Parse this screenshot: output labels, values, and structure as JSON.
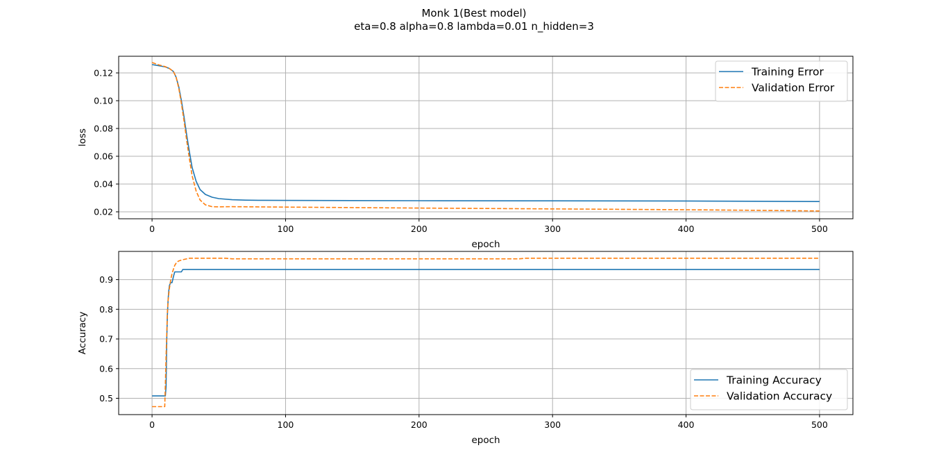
{
  "figure": {
    "title": "Monk 1(Best model)",
    "subtitle": "eta=0.8 alpha=0.8 lambda=0.01 n_hidden=3"
  },
  "colors": {
    "training": "#1f77b4",
    "validation": "#ff7f0e",
    "grid": "#b0b0b0"
  },
  "chart_data": [
    {
      "type": "line",
      "xlabel": "epoch",
      "ylabel": "loss",
      "xlim": [
        -25,
        525
      ],
      "ylim": [
        0.015,
        0.132
      ],
      "xticks": [
        0,
        100,
        200,
        300,
        400,
        500
      ],
      "yticks": [
        0.02,
        0.04,
        0.06,
        0.08,
        0.1,
        0.12
      ],
      "ytick_labels": [
        "0.02",
        "0.04",
        "0.06",
        "0.08",
        "0.10",
        "0.12"
      ],
      "grid": true,
      "legend_position": "top-right",
      "series": [
        {
          "name": "Training Error",
          "style": "solid",
          "x": [
            0,
            5,
            10,
            13,
            16,
            18,
            20,
            22,
            24,
            26,
            28,
            30,
            33,
            36,
            40,
            45,
            50,
            60,
            70,
            80,
            100,
            150,
            200,
            300,
            400,
            450,
            500
          ],
          "y": [
            0.126,
            0.1252,
            0.1243,
            0.1232,
            0.121,
            0.117,
            0.11,
            0.1,
            0.088,
            0.075,
            0.063,
            0.052,
            0.042,
            0.036,
            0.0325,
            0.0305,
            0.0295,
            0.0287,
            0.0284,
            0.0283,
            0.0282,
            0.0281,
            0.028,
            0.0279,
            0.0278,
            0.0276,
            0.0274
          ]
        },
        {
          "name": "Validation Error",
          "style": "dashed",
          "x": [
            0,
            5,
            10,
            13,
            16,
            18,
            20,
            22,
            24,
            26,
            28,
            30,
            33,
            36,
            40,
            45,
            50,
            60,
            100,
            200,
            300,
            400,
            450,
            500
          ],
          "y": [
            0.1275,
            0.1258,
            0.1245,
            0.1232,
            0.121,
            0.117,
            0.109,
            0.098,
            0.085,
            0.071,
            0.058,
            0.046,
            0.035,
            0.0285,
            0.025,
            0.0237,
            0.0236,
            0.0237,
            0.0234,
            0.0227,
            0.0221,
            0.0215,
            0.0211,
            0.0206
          ]
        }
      ]
    },
    {
      "type": "line",
      "xlabel": "epoch",
      "ylabel": "Accuracy",
      "xlim": [
        -25,
        525
      ],
      "ylim": [
        0.445,
        0.995
      ],
      "xticks": [
        0,
        100,
        200,
        300,
        400,
        500
      ],
      "yticks": [
        0.5,
        0.6,
        0.7,
        0.8,
        0.9
      ],
      "ytick_labels": [
        "0.5",
        "0.6",
        "0.7",
        "0.8",
        "0.9"
      ],
      "grid": true,
      "legend_position": "lower-right",
      "series": [
        {
          "name": "Training Accuracy",
          "style": "solid",
          "x": [
            0,
            9,
            10,
            10.5,
            11,
            11.5,
            12,
            12.5,
            13,
            14,
            15,
            16,
            17,
            18,
            22,
            23,
            24,
            500
          ],
          "y": [
            0.508,
            0.508,
            0.508,
            0.54,
            0.7,
            0.78,
            0.83,
            0.86,
            0.88,
            0.89,
            0.89,
            0.91,
            0.926,
            0.926,
            0.926,
            0.934,
            0.934,
            0.934
          ]
        },
        {
          "name": "Validation Accuracy",
          "style": "dashed",
          "x": [
            0,
            9,
            9.5,
            10,
            10.5,
            11,
            11.5,
            12,
            13,
            14,
            15,
            16,
            17,
            18,
            19,
            20,
            22,
            25,
            28,
            32,
            55,
            60,
            275,
            280,
            500
          ],
          "y": [
            0.472,
            0.472,
            0.472,
            0.55,
            0.64,
            0.72,
            0.79,
            0.83,
            0.87,
            0.9,
            0.92,
            0.935,
            0.948,
            0.955,
            0.96,
            0.963,
            0.966,
            0.969,
            0.972,
            0.972,
            0.972,
            0.97,
            0.97,
            0.972,
            0.972
          ]
        }
      ]
    }
  ]
}
